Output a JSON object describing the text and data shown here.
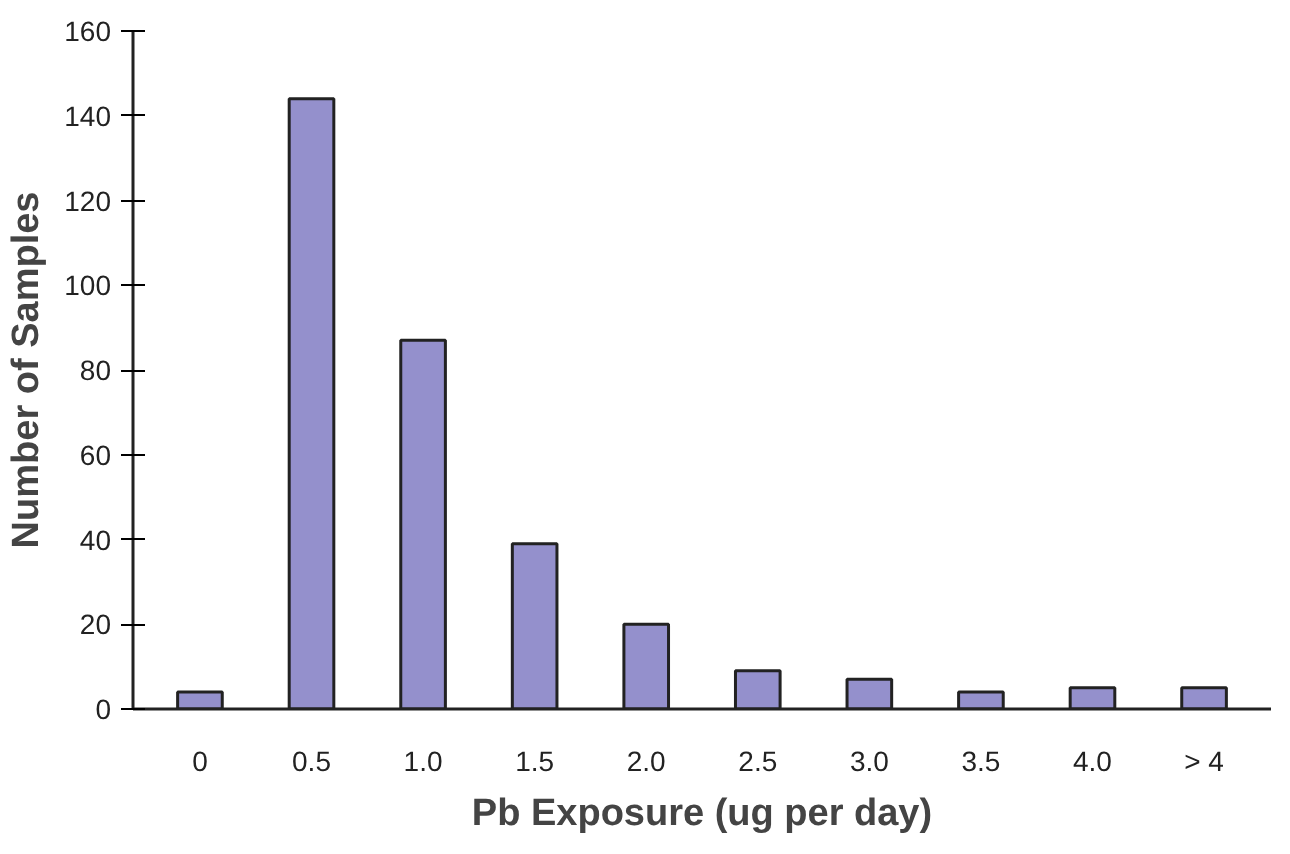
{
  "chart_data": {
    "type": "bar",
    "xlabel": "Pb Exposure (ug per day)",
    "ylabel": "Number of Samples",
    "categories": [
      "0",
      "0.5",
      "1.0",
      "1.5",
      "2.0",
      "2.5",
      "3.0",
      "3.5",
      "4.0",
      "> 4"
    ],
    "values": [
      4,
      144,
      87,
      39,
      20,
      9,
      7,
      4,
      5,
      5
    ],
    "color": "#9490cc",
    "ylim": [
      0,
      160
    ],
    "yticks": [
      0,
      20,
      40,
      60,
      80,
      100,
      120,
      140,
      160
    ],
    "grid": false
  }
}
